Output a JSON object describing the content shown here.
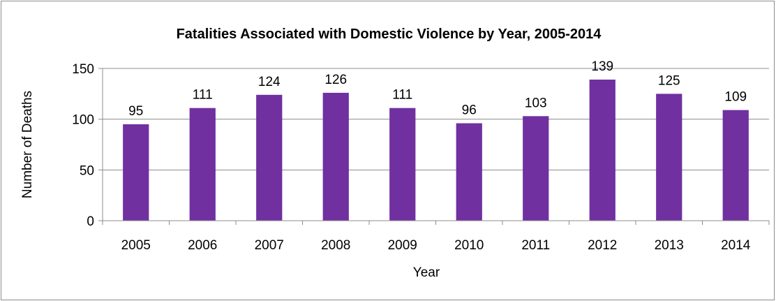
{
  "chart_data": {
    "type": "bar",
    "title": "Fatalities Associated with Domestic Violence by Year, 2005-2014",
    "xlabel": "Year",
    "ylabel": "Number of Deaths",
    "categories": [
      "2005",
      "2006",
      "2007",
      "2008",
      "2009",
      "2010",
      "2011",
      "2012",
      "2013",
      "2014"
    ],
    "values": [
      95,
      111,
      124,
      126,
      111,
      96,
      103,
      139,
      125,
      109
    ],
    "data_labels": [
      "95",
      "111",
      "124",
      "126",
      "111",
      "96",
      "103",
      "139",
      "125",
      "109"
    ],
    "yticks": [
      "0",
      "50",
      "100",
      "150"
    ],
    "ylim": [
      0,
      150
    ],
    "grid": true,
    "legend": "none",
    "bar_color": "#7030a0"
  }
}
